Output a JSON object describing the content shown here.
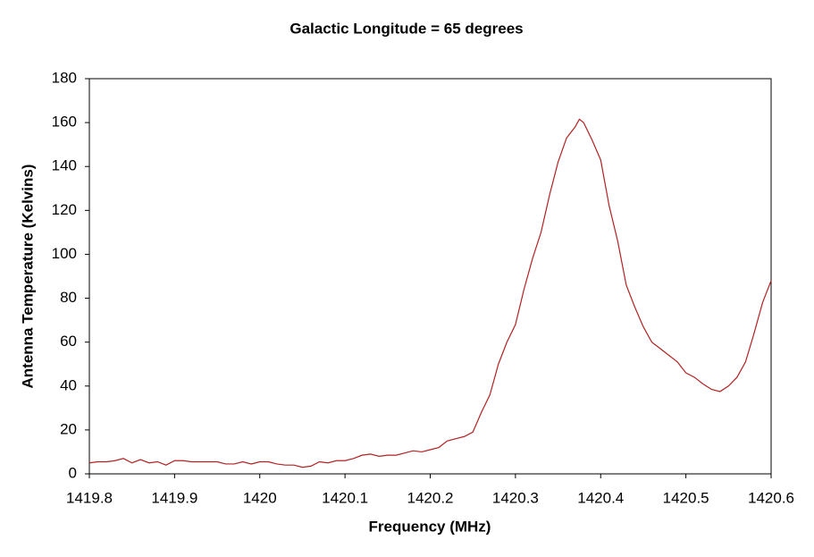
{
  "chart_data": {
    "type": "line",
    "title": "Galactic Longitude = 65 degrees",
    "xlabel": "Frequency (MHz)",
    "ylabel": "Antenna Temperature (Kelvins)",
    "x": [
      1419.8,
      1419.81,
      1419.82,
      1419.83,
      1419.84,
      1419.85,
      1419.86,
      1419.87,
      1419.88,
      1419.89,
      1419.9,
      1419.91,
      1419.92,
      1419.93,
      1419.94,
      1419.95,
      1419.96,
      1419.97,
      1419.98,
      1419.99,
      1420.0,
      1420.01,
      1420.02,
      1420.03,
      1420.04,
      1420.05,
      1420.06,
      1420.07,
      1420.08,
      1420.09,
      1420.1,
      1420.11,
      1420.12,
      1420.13,
      1420.14,
      1420.15,
      1420.16,
      1420.17,
      1420.18,
      1420.19,
      1420.2,
      1420.21,
      1420.22,
      1420.23,
      1420.24,
      1420.25,
      1420.26,
      1420.27,
      1420.28,
      1420.29,
      1420.3,
      1420.31,
      1420.32,
      1420.33,
      1420.34,
      1420.35,
      1420.36,
      1420.37,
      1420.375,
      1420.38,
      1420.39,
      1420.4,
      1420.41,
      1420.42,
      1420.43,
      1420.44,
      1420.45,
      1420.46,
      1420.47,
      1420.48,
      1420.49,
      1420.5,
      1420.51,
      1420.52,
      1420.53,
      1420.54,
      1420.55,
      1420.56,
      1420.57,
      1420.58,
      1420.59,
      1420.6
    ],
    "series": [
      {
        "name": "Antenna Temperature",
        "color": "#b22222",
        "values": [
          5,
          5.5,
          5.5,
          6,
          7,
          5,
          6.5,
          5,
          5.5,
          4,
          6,
          6,
          5.5,
          5.5,
          5.5,
          5.5,
          4.5,
          4.5,
          5.5,
          4.5,
          5.5,
          5.5,
          4.5,
          4,
          4,
          3,
          3.5,
          5.5,
          5,
          6,
          6,
          7,
          8.5,
          9,
          8,
          8.5,
          8.5,
          9.5,
          10.5,
          10,
          11,
          12,
          15,
          16,
          17,
          19,
          28,
          36,
          50,
          60,
          68,
          84,
          98,
          110,
          127,
          142,
          153,
          158,
          161.5,
          160,
          152,
          143,
          122,
          106,
          86,
          76,
          67,
          60,
          57,
          54,
          51,
          46,
          44,
          41,
          38.5,
          37.5,
          40,
          44,
          51,
          64,
          78,
          88
        ]
      }
    ],
    "xlim": [
      1419.8,
      1420.6
    ],
    "xticks": [
      1419.8,
      1419.9,
      1420,
      1420.1,
      1420.2,
      1420.3,
      1420.4,
      1420.5,
      1420.6
    ],
    "ylim": [
      0,
      180
    ],
    "yticks": [
      0,
      20,
      40,
      60,
      80,
      100,
      120,
      140,
      160,
      180
    ],
    "grid": false
  }
}
